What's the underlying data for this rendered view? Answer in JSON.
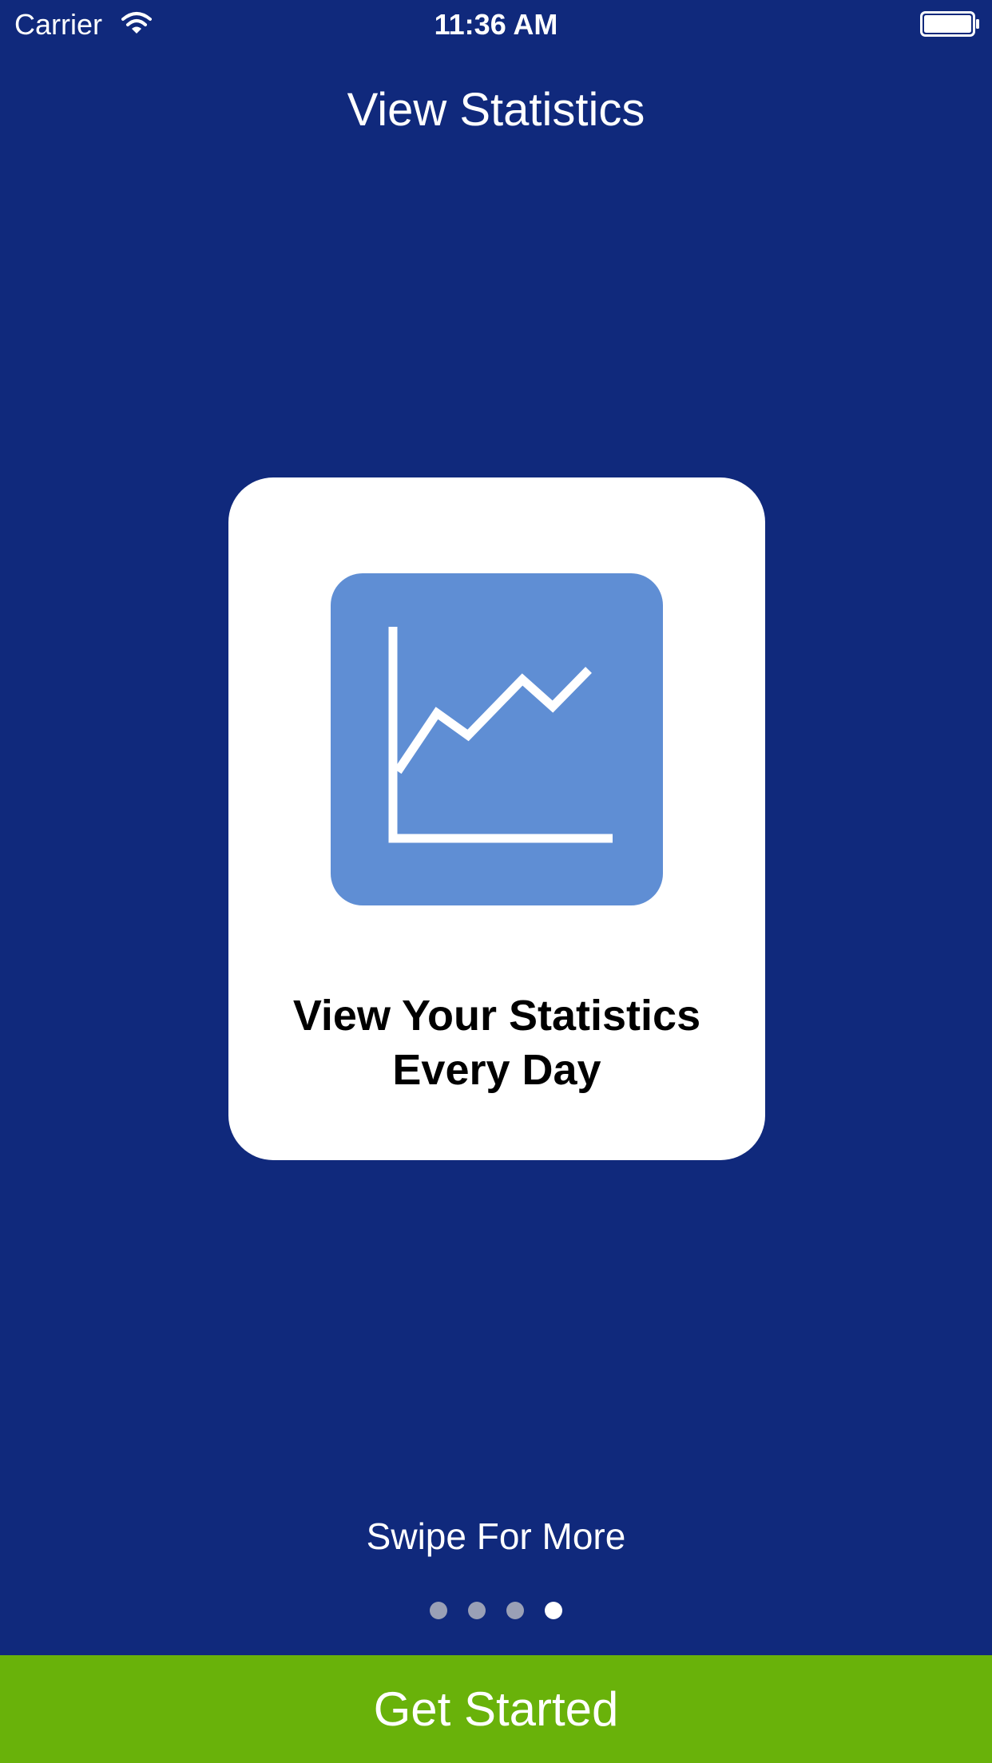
{
  "status_bar": {
    "carrier": "Carrier",
    "time": "11:36 AM",
    "wifi_icon": "wifi-icon",
    "battery_icon": "battery-icon"
  },
  "header": {
    "title": "View Statistics"
  },
  "card": {
    "icon": "line-chart-icon",
    "icon_tile_color": "#5f8ed4",
    "headline_line1": "View Your Statistics",
    "headline_line2": "Every Day"
  },
  "pager": {
    "hint": "Swipe For More",
    "total_pages": 4,
    "current_page": 4
  },
  "cta": {
    "label": "Get Started",
    "color": "#69b20a"
  },
  "colors": {
    "background": "#10297c",
    "card": "#ffffff",
    "dot_inactive": "#9aa0b6",
    "dot_active": "#ffffff"
  }
}
